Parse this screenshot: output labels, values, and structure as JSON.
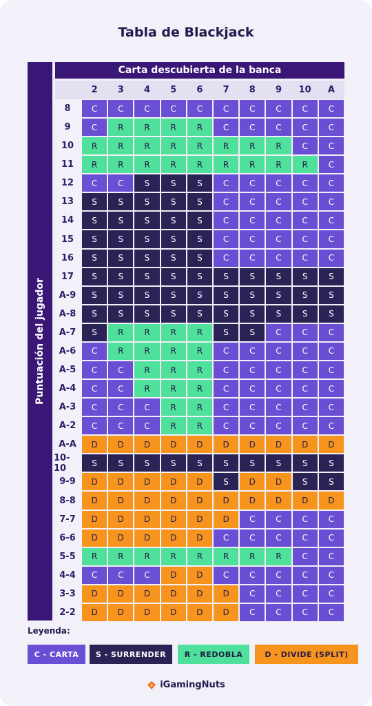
{
  "title": "Tabla de Blackjack",
  "column_header": "Carta descubierta de la banca",
  "row_header": "Puntuación del jugador",
  "columns": [
    "2",
    "3",
    "4",
    "5",
    "6",
    "7",
    "8",
    "9",
    "10",
    "A"
  ],
  "rows": [
    {
      "label": "8",
      "cells": [
        "C",
        "C",
        "C",
        "C",
        "C",
        "C",
        "C",
        "C",
        "C",
        "C"
      ]
    },
    {
      "label": "9",
      "cells": [
        "C",
        "R",
        "R",
        "R",
        "R",
        "C",
        "C",
        "C",
        "C",
        "C"
      ]
    },
    {
      "label": "10",
      "cells": [
        "R",
        "R",
        "R",
        "R",
        "R",
        "R",
        "R",
        "R",
        "C",
        "C"
      ]
    },
    {
      "label": "11",
      "cells": [
        "R",
        "R",
        "R",
        "R",
        "R",
        "R",
        "R",
        "R",
        "R",
        "C"
      ]
    },
    {
      "label": "12",
      "cells": [
        "C",
        "C",
        "S",
        "S",
        "S",
        "C",
        "C",
        "C",
        "C",
        "C"
      ]
    },
    {
      "label": "13",
      "cells": [
        "S",
        "S",
        "S",
        "S",
        "S",
        "C",
        "C",
        "C",
        "C",
        "C"
      ]
    },
    {
      "label": "14",
      "cells": [
        "S",
        "S",
        "S",
        "S",
        "S",
        "C",
        "C",
        "C",
        "C",
        "C"
      ]
    },
    {
      "label": "15",
      "cells": [
        "S",
        "S",
        "S",
        "S",
        "S",
        "C",
        "C",
        "C",
        "C",
        "C"
      ]
    },
    {
      "label": "16",
      "cells": [
        "S",
        "S",
        "S",
        "S",
        "S",
        "C",
        "C",
        "C",
        "C",
        "C"
      ]
    },
    {
      "label": "17",
      "cells": [
        "S",
        "S",
        "S",
        "S",
        "S",
        "S",
        "S",
        "S",
        "S",
        "S"
      ]
    },
    {
      "label": "A-9",
      "cells": [
        "S",
        "S",
        "S",
        "S",
        "S",
        "S",
        "S",
        "S",
        "S",
        "S"
      ]
    },
    {
      "label": "A-8",
      "cells": [
        "S",
        "S",
        "S",
        "S",
        "S",
        "S",
        "S",
        "S",
        "S",
        "S"
      ]
    },
    {
      "label": "A-7",
      "cells": [
        "S",
        "R",
        "R",
        "R",
        "R",
        "S",
        "S",
        "C",
        "C",
        "C"
      ]
    },
    {
      "label": "A-6",
      "cells": [
        "C",
        "R",
        "R",
        "R",
        "R",
        "C",
        "C",
        "C",
        "C",
        "C"
      ]
    },
    {
      "label": "A-5",
      "cells": [
        "C",
        "C",
        "R",
        "R",
        "R",
        "C",
        "C",
        "C",
        "C",
        "C"
      ]
    },
    {
      "label": "A-4",
      "cells": [
        "C",
        "C",
        "R",
        "R",
        "R",
        "C",
        "C",
        "C",
        "C",
        "C"
      ]
    },
    {
      "label": "A-3",
      "cells": [
        "C",
        "C",
        "C",
        "R",
        "R",
        "C",
        "C",
        "C",
        "C",
        "C"
      ]
    },
    {
      "label": "A-2",
      "cells": [
        "C",
        "C",
        "C",
        "R",
        "R",
        "C",
        "C",
        "C",
        "C",
        "C"
      ]
    },
    {
      "label": "A-A",
      "cells": [
        "D",
        "D",
        "D",
        "D",
        "D",
        "D",
        "D",
        "D",
        "D",
        "D"
      ]
    },
    {
      "label": "10-10",
      "cells": [
        "S",
        "S",
        "S",
        "S",
        "S",
        "S",
        "S",
        "S",
        "S",
        "S"
      ]
    },
    {
      "label": "9-9",
      "cells": [
        "D",
        "D",
        "D",
        "D",
        "D",
        "S",
        "D",
        "D",
        "S",
        "S"
      ]
    },
    {
      "label": "8-8",
      "cells": [
        "D",
        "D",
        "D",
        "D",
        "D",
        "D",
        "D",
        "D",
        "D",
        "D"
      ]
    },
    {
      "label": "7-7",
      "cells": [
        "D",
        "D",
        "D",
        "D",
        "D",
        "D",
        "C",
        "C",
        "C",
        "C"
      ]
    },
    {
      "label": "6-6",
      "cells": [
        "D",
        "D",
        "D",
        "D",
        "D",
        "C",
        "C",
        "C",
        "C",
        "C"
      ]
    },
    {
      "label": "5-5",
      "cells": [
        "R",
        "R",
        "R",
        "R",
        "R",
        "R",
        "R",
        "R",
        "C",
        "C"
      ]
    },
    {
      "label": "4-4",
      "cells": [
        "C",
        "C",
        "C",
        "D",
        "D",
        "C",
        "C",
        "C",
        "C",
        "C"
      ]
    },
    {
      "label": "3-3",
      "cells": [
        "D",
        "D",
        "D",
        "D",
        "D",
        "D",
        "C",
        "C",
        "C",
        "C"
      ]
    },
    {
      "label": "2-2",
      "cells": [
        "D",
        "D",
        "D",
        "D",
        "D",
        "D",
        "C",
        "C",
        "C",
        "C"
      ]
    }
  ],
  "legend": {
    "title": "Leyenda:",
    "items": [
      "C - CARTA",
      "S - SURRENDER",
      "R - REDOBLA",
      "D - DIVIDE (SPLIT)"
    ]
  },
  "footer": "iGamingNuts"
}
